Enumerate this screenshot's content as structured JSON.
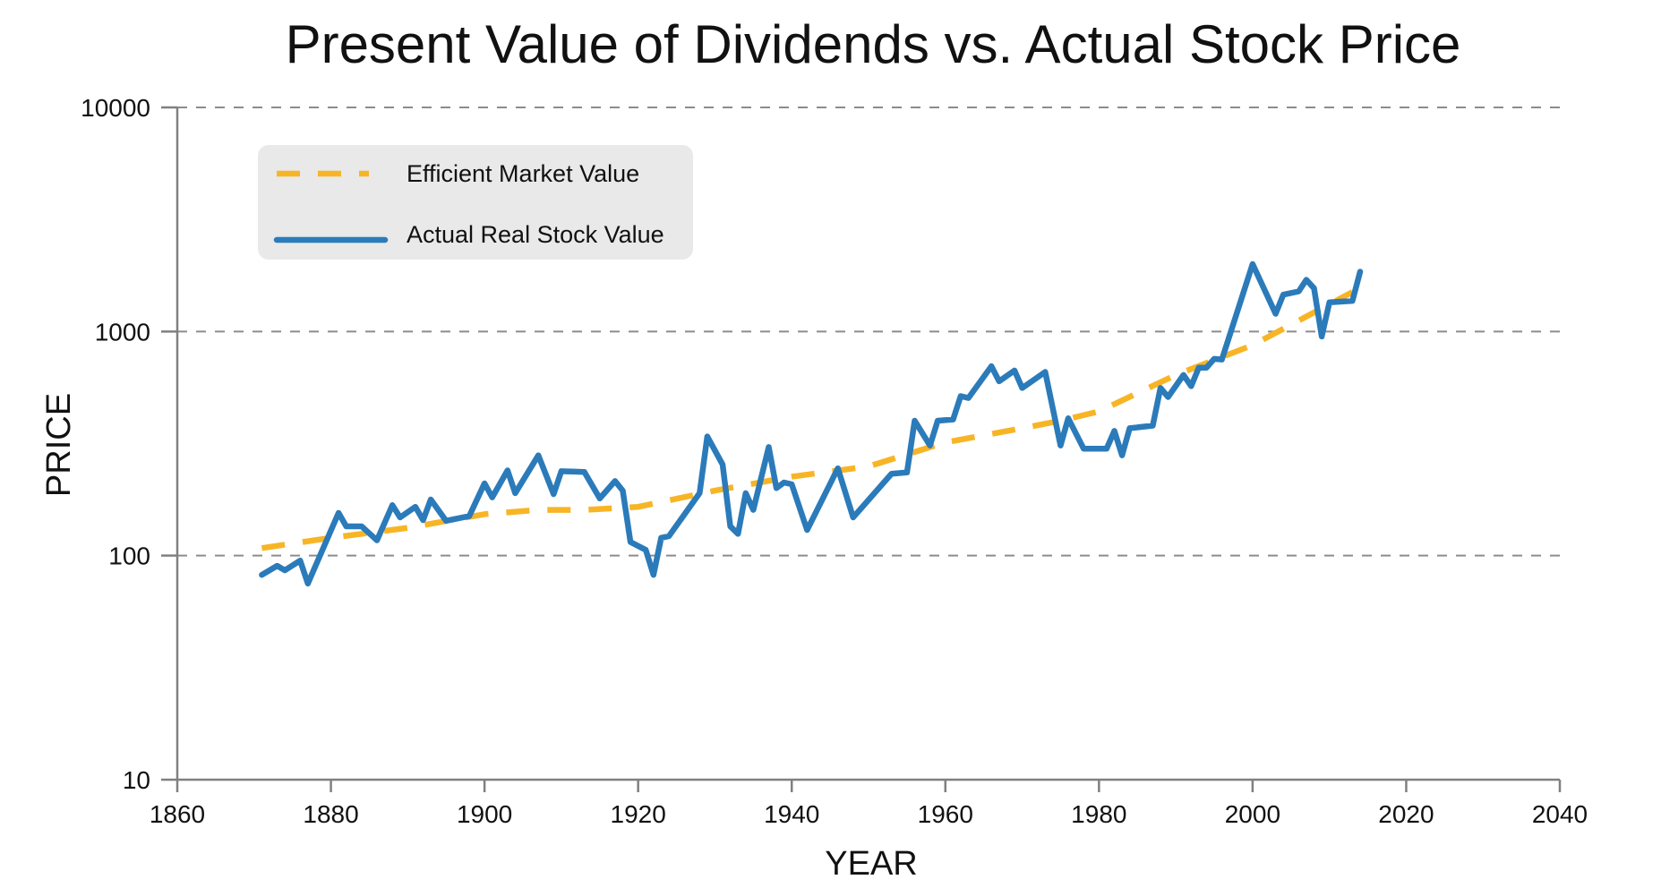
{
  "chart_data": {
    "type": "line",
    "title": "Present Value of Dividends vs. Actual Stock Price",
    "xlabel": "YEAR",
    "ylabel": "PRICE",
    "xlim": [
      1860,
      2040
    ],
    "ylim": [
      10,
      10000
    ],
    "yscale": "log",
    "x_ticks": [
      1860,
      1880,
      1900,
      1920,
      1940,
      1960,
      1980,
      2000,
      2020,
      2040
    ],
    "y_ticks": [
      10,
      100,
      1000,
      10000
    ],
    "x_tick_labels": [
      "1860",
      "1880",
      "1900",
      "1920",
      "1940",
      "1960",
      "1980",
      "2000",
      "2020",
      "2040"
    ],
    "y_tick_labels": [
      "10",
      "100",
      "1000",
      "10000"
    ],
    "grid": "horizontal dashed",
    "legend_position": "top-left",
    "series": [
      {
        "name": "Efficient Market Value",
        "color": "#F7B526",
        "style": "dashed",
        "x": [
          1871,
          1880,
          1890,
          1900,
          1907,
          1913,
          1920,
          1930,
          1940,
          1950,
          1960,
          1970,
          1975,
          1980,
          1990,
          2000,
          2013
        ],
        "y": [
          108,
          120,
          133,
          153,
          160,
          160,
          165,
          195,
          225,
          250,
          320,
          370,
          400,
          440,
          640,
          870,
          1500
        ]
      },
      {
        "name": "Actual Real Stock Value",
        "color": "#2B7BBA",
        "style": "solid",
        "x": [
          1871,
          1873,
          1874,
          1876,
          1877,
          1881,
          1882,
          1884,
          1886,
          1888,
          1889,
          1891,
          1892,
          1893,
          1895,
          1898,
          1900,
          1901,
          1903,
          1904,
          1907,
          1909,
          1910,
          1913,
          1915,
          1917,
          1918,
          1919,
          1921,
          1922,
          1923,
          1924,
          1928,
          1929,
          1931,
          1932,
          1933,
          1934,
          1935,
          1937,
          1938,
          1939,
          1940,
          1942,
          1946,
          1948,
          1953,
          1955,
          1956,
          1958,
          1959,
          1961,
          1962,
          1963,
          1966,
          1967,
          1969,
          1970,
          1973,
          1975,
          1976,
          1978,
          1981,
          1982,
          1983,
          1984,
          1987,
          1988,
          1989,
          1991,
          1992,
          1993,
          1994,
          1995,
          1996,
          2000,
          2003,
          2004,
          2006,
          2007,
          2008,
          2009,
          2010,
          2013,
          2014
        ],
        "y": [
          82,
          90,
          86,
          95,
          75,
          155,
          135,
          135,
          117,
          168,
          148,
          165,
          144,
          178,
          143,
          150,
          210,
          182,
          240,
          190,
          280,
          188,
          238,
          236,
          180,
          215,
          195,
          115,
          106,
          82,
          120,
          122,
          190,
          340,
          255,
          135,
          125,
          190,
          160,
          305,
          200,
          212,
          208,
          130,
          245,
          148,
          232,
          235,
          400,
          310,
          400,
          405,
          515,
          505,
          700,
          600,
          670,
          560,
          660,
          310,
          410,
          300,
          300,
          360,
          280,
          370,
          380,
          560,
          510,
          640,
          570,
          690,
          690,
          755,
          750,
          2000,
          1200,
          1460,
          1510,
          1700,
          1560,
          950,
          1350,
          1370,
          1850
        ]
      }
    ]
  }
}
